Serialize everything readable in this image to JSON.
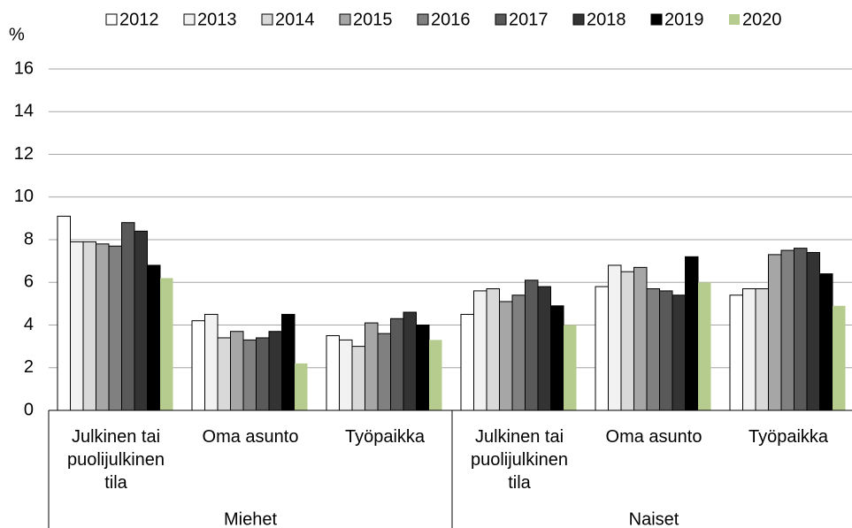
{
  "chart_data": {
    "type": "bar",
    "y_label": "%",
    "categories": [
      "Julkinen tai\npuolijulkinen\ntila",
      "Oma asunto",
      "Työpaikka",
      "Julkinen tai\npuolijulkinen\ntila",
      "Oma asunto",
      "Työpaikka"
    ],
    "groups": [
      "Miehet",
      "Naiset"
    ],
    "series": [
      {
        "name": "2012",
        "color": "#ffffff",
        "values": [
          9.1,
          4.2,
          3.5,
          4.5,
          5.8,
          5.4
        ]
      },
      {
        "name": "2013",
        "color": "#f2f2f2",
        "values": [
          7.9,
          4.5,
          3.3,
          5.6,
          6.8,
          5.7
        ]
      },
      {
        "name": "2014",
        "color": "#d9d9d9",
        "values": [
          7.9,
          3.4,
          3.0,
          5.7,
          6.5,
          5.7
        ]
      },
      {
        "name": "2015",
        "color": "#a6a6a6",
        "values": [
          7.8,
          3.7,
          4.1,
          5.1,
          6.7,
          7.3
        ]
      },
      {
        "name": "2016",
        "color": "#808080",
        "values": [
          7.7,
          3.3,
          3.6,
          5.4,
          5.7,
          7.5
        ]
      },
      {
        "name": "2017",
        "color": "#595959",
        "values": [
          8.8,
          3.4,
          4.3,
          6.1,
          5.6,
          7.6
        ]
      },
      {
        "name": "2018",
        "color": "#333333",
        "values": [
          8.4,
          3.7,
          4.6,
          5.8,
          5.4,
          7.4
        ]
      },
      {
        "name": "2019",
        "color": "#000000",
        "values": [
          6.8,
          4.5,
          4.0,
          4.9,
          7.2,
          6.4
        ]
      },
      {
        "name": "2020",
        "color": "#b5cc8e",
        "values": [
          6.2,
          2.2,
          3.3,
          4.0,
          6.0,
          4.9
        ]
      }
    ],
    "ylim": [
      0,
      16
    ],
    "yticks": [
      0,
      2,
      4,
      6,
      8,
      10,
      12,
      14,
      16
    ],
    "grid": true,
    "legend": "top"
  }
}
